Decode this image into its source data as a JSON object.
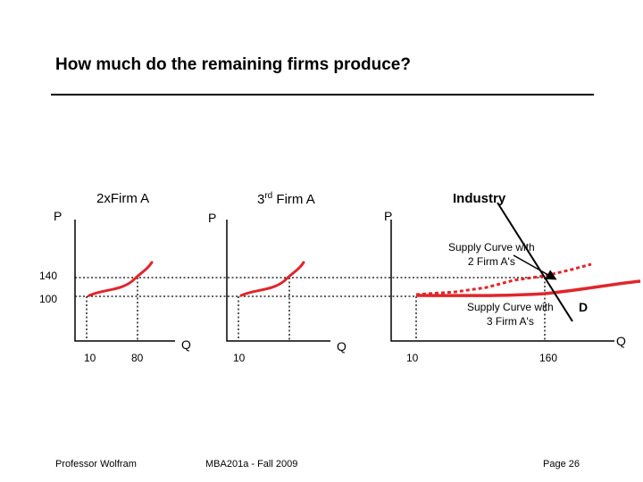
{
  "title": "How much do the remaining firms produce?",
  "panels": {
    "firm2": {
      "title": "2xFirm A",
      "y_axis": "P",
      "x_axis": "Q",
      "q_ticks": [
        "10",
        "80"
      ]
    },
    "firm3": {
      "title_base": "3",
      "title_sup": "rd",
      "title_rest": " Firm A",
      "y_axis": "P",
      "x_axis": "Q",
      "q_ticks": [
        "10"
      ]
    },
    "industry": {
      "title": "Industry",
      "y_axis": "P",
      "x_axis": "Q",
      "q_ticks": [
        "10",
        "160"
      ],
      "demand_label": "D"
    }
  },
  "price_levels": [
    "140",
    "100"
  ],
  "annotations": {
    "supply_two_line1": "Supply Curve with",
    "supply_two_line2": "2 Firm A's",
    "supply_three_line1": "Supply Curve with",
    "supply_three_line2": "3 Firm A's"
  },
  "colors": {
    "supply": "#e0262b",
    "axis": "#000000",
    "guide": "#000000"
  },
  "footer": {
    "left": "Professor Wolfram",
    "center": "MBA201a - Fall 2009",
    "right": "Page 26"
  }
}
